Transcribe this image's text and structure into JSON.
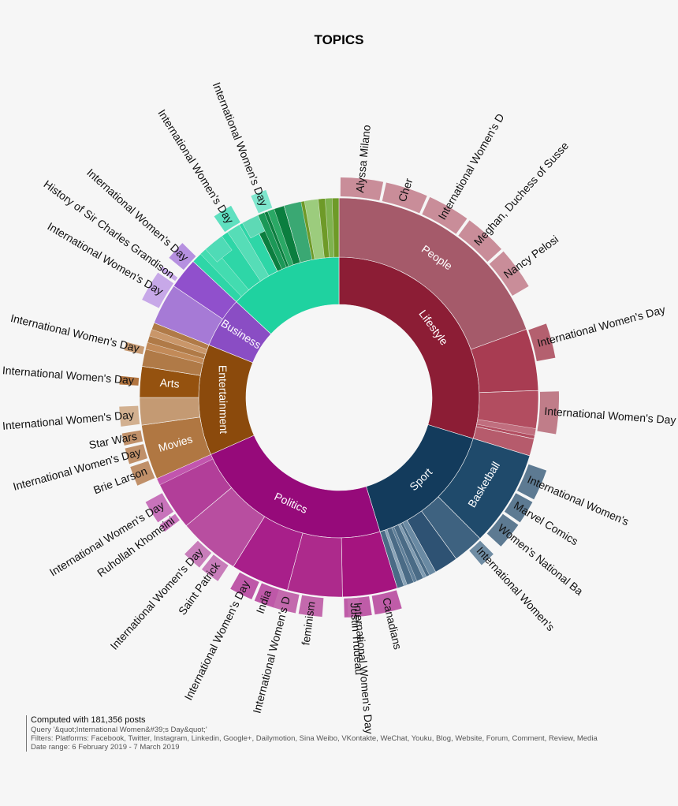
{
  "chart_data": {
    "type": "sunburst",
    "title": "TOPICS",
    "hierarchy": [
      {
        "name": "Lifestyle",
        "color": "#8c1d35",
        "start": 0,
        "end": 107,
        "children": [
          {
            "name": "People",
            "color": "#a55a6a",
            "start": 0,
            "end": 70,
            "children": [
              {
                "name": "Alyssa Milano",
                "color": "#c98d99",
                "start": 0,
                "end": 12
              },
              {
                "name": "Cher",
                "color": "#c98d99",
                "start": 12,
                "end": 24
              },
              {
                "name": "International Women's D",
                "color": "#c98d99",
                "start": 24,
                "end": 36
              },
              {
                "name": "Meghan, Duchess of Susse",
                "color": "#c98d99",
                "start": 36,
                "end": 48
              },
              {
                "name": "Nancy Pelosi",
                "color": "#c98d99",
                "start": 48,
                "end": 60
              }
            ]
          },
          {
            "name": "",
            "color": "#a83c52",
            "start": 70,
            "end": 88,
            "children": [
              {
                "name": "International Women's Day",
                "color": "#b4606f",
                "start": 70,
                "end": 80
              }
            ]
          },
          {
            "name": "",
            "color": "#b24d60",
            "start": 88,
            "end": 102,
            "children": [
              {
                "name": "International Women's Day",
                "color": "#c07d89",
                "start": 88,
                "end": 100
              }
            ]
          },
          {
            "name": "",
            "color": "#b65b6c",
            "start": 102,
            "end": 107,
            "children": []
          }
        ]
      },
      {
        "name": "Sport",
        "color": "#133b5c",
        "start": 107,
        "end": 163,
        "children": [
          {
            "name": "Basketball",
            "color": "#1f4a6b",
            "start": 107,
            "end": 135,
            "children": [
              {
                "name": "International Women's",
                "color": "#5d7a92",
                "start": 109,
                "end": 118
              },
              {
                "name": "Marvel Comics",
                "color": "#5d7a92",
                "start": 118,
                "end": 125
              },
              {
                "name": "Women's National Ba",
                "color": "#5d7a92",
                "start": 125,
                "end": 133
              }
            ]
          },
          {
            "name": "",
            "color": "#3e6280",
            "start": 135,
            "end": 144,
            "children": [
              {
                "name": "International Women's",
                "color": "#6f8ca3",
                "start": 135,
                "end": 140
              }
            ]
          },
          {
            "name": "",
            "color": "#2e5273",
            "start": 144,
            "end": 151,
            "children": []
          },
          {
            "name": "",
            "color": "#4a6b86",
            "start": 151,
            "end": 163,
            "children": []
          }
        ]
      },
      {
        "name": "Politics",
        "color": "#960a7a",
        "start": 163,
        "end": 246,
        "children": [
          {
            "name": "",
            "color": "#a5147f",
            "start": 163,
            "end": 179,
            "children": [
              {
                "name": "Canadians",
                "color": "#bf5ca8",
                "start": 163,
                "end": 171
              },
              {
                "name": "International Women's Day",
                "color": "#bf5ca8",
                "start": 171,
                "end": 179
              }
            ]
          },
          {
            "name": "",
            "color": "#ad2a8c",
            "start": 179,
            "end": 195,
            "children": [
              {
                "name": "Justin Trudeau",
                "color": "#c369ad",
                "start": 174,
                "end": 178
              },
              {
                "name": "feminism",
                "color": "#c369ad",
                "start": 184,
                "end": 191
              },
              {
                "name": "International Women's D",
                "color": "#c369ad",
                "start": 191,
                "end": 198
              }
            ]
          },
          {
            "name": "",
            "color": "#a81f8a",
            "start": 195,
            "end": 212,
            "children": [
              {
                "name": "India",
                "color": "#be58a8",
                "start": 197,
                "end": 203
              },
              {
                "name": "International Women's Day",
                "color": "#be58a8",
                "start": 203,
                "end": 210
              }
            ]
          },
          {
            "name": "",
            "color": "#b84ea0",
            "start": 212,
            "end": 230,
            "children": [
              {
                "name": "Saint Patrick",
                "color": "#c87dba",
                "start": 213,
                "end": 219
              },
              {
                "name": "International Women's Day",
                "color": "#c87dba",
                "start": 219,
                "end": 225
              }
            ]
          },
          {
            "name": "",
            "color": "#b23e99",
            "start": 230,
            "end": 246,
            "children": [
              {
                "name": "Ruhollah Khomeini",
                "color": "#c873bb",
                "start": 232,
                "end": 235
              },
              {
                "name": "International Women's Day",
                "color": "#c873bb",
                "start": 235,
                "end": 242
              }
            ]
          }
        ]
      },
      {
        "name": "Entertainment",
        "color": "#8b4a0c",
        "start": 246,
        "end": 292,
        "children": [
          {
            "name": "Movies",
            "color": "#b07742",
            "start": 246,
            "end": 262,
            "children": [
              {
                "name": "Brie Larson",
                "color": "#c09069",
                "start": 246,
                "end": 252
              },
              {
                "name": "International Women's Day",
                "color": "#c09069",
                "start": 252,
                "end": 257
              },
              {
                "name": "Star Wars",
                "color": "#c09069",
                "start": 257,
                "end": 261
              }
            ]
          },
          {
            "name": "",
            "color": "#c49a73",
            "start": 262,
            "end": 270,
            "children": [
              {
                "name": "International Women's Day",
                "color": "#d2b090",
                "start": 262,
                "end": 268
              }
            ]
          },
          {
            "name": "Arts",
            "color": "#95520f",
            "start": 270,
            "end": 279,
            "children": [
              {
                "name": "International Women's Day",
                "color": "#b27540",
                "start": 273,
                "end": 276
              }
            ]
          },
          {
            "name": "",
            "color": "#b07a47",
            "start": 279,
            "end": 292,
            "children": [
              {
                "name": "International Women's Day",
                "color": "#c89b73",
                "start": 282,
                "end": 285
              }
            ]
          }
        ]
      },
      {
        "name": "Business",
        "color": "#8a4dc4",
        "start": 292,
        "end": 313,
        "children": [
          {
            "name": "",
            "color": "#a67ad6",
            "start": 292,
            "end": 304,
            "children": [
              {
                "name": "International Women's Day",
                "color": "#c7a8e8",
                "start": 296,
                "end": 305
              },
              {
                "name": "History of Sir Charles Grandison",
                "color": "#c7a8e8",
                "start": 305,
                "end": 307
              }
            ]
          },
          {
            "name": "",
            "color": "#9050cc",
            "start": 304,
            "end": 313,
            "children": [
              {
                "name": "International Women's Day",
                "color": "#b690e0",
                "start": 309,
                "end": 315
              }
            ]
          }
        ]
      },
      {
        "name": "",
        "color": "#1fd2a0",
        "start": 313,
        "end": 360,
        "children": [
          {
            "name": "",
            "color": "#2ed6a7",
            "start": 313,
            "end": 334,
            "children": [
              {
                "name": "International Women's Day",
                "color": "#5fe0c0",
                "start": 325,
                "end": 331
              },
              {
                "name": "International Women's Day",
                "color": "#7ee6cd",
                "start": 336,
                "end": 341
              }
            ]
          },
          {
            "name": "",
            "color": "#0b7e3f",
            "start": 334,
            "end": 344,
            "children": []
          },
          {
            "name": "",
            "color": "#6e9a28",
            "start": 344,
            "end": 360,
            "children": []
          }
        ]
      }
    ]
  },
  "footer": {
    "computed": "Computed with 181,356 posts",
    "query": "Query '&quot;International Women&#39;s Day&quot;'",
    "filters": "Filters: Platforms: Facebook, Twitter, Instagram, Linkedin, Google+, Dailymotion, Sina Weibo, VKontakte, WeChat, Youku, Blog, Website, Forum, Comment, Review, Media",
    "date_range": "Date range: 6 February 2019 - 7 March 2019"
  }
}
